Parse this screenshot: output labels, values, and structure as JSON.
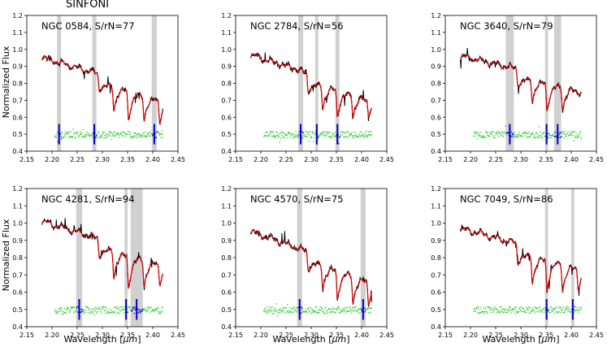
{
  "figure_title": "SINFONI",
  "ylabel": "Normalized Flux",
  "xlabel": "Wavelength [",
  "xlabel_unit": "μm",
  "xlabel_close": "]",
  "colors": {
    "observed": "#000000",
    "model": "#dd0000",
    "residual": "#33cc33",
    "masked_residual": "#0000cc",
    "mask_band": "#c8c8c8"
  },
  "chart_data": [
    {
      "type": "line",
      "title": "NGC 0584, S/rN=77",
      "xlim": [
        2.15,
        2.45
      ],
      "ylim": [
        0.4,
        1.2
      ],
      "xticks": [
        "2.15",
        "2.20",
        "2.25",
        "2.30",
        "2.35",
        "2.40",
        "2.45"
      ],
      "yticks": [
        "0.4",
        "0.5",
        "0.6",
        "0.7",
        "0.8",
        "0.9",
        "1.0",
        "1.1",
        "1.2"
      ],
      "data_range": [
        2.18,
        2.42
      ],
      "masks": [
        [
          2.21,
          2.218
        ],
        [
          2.28,
          2.288
        ],
        [
          2.398,
          2.408
        ]
      ],
      "start_level": 0.955,
      "end_level": 0.74,
      "absorptions": [
        [
          2.294,
          0.09,
          0.004
        ],
        [
          2.323,
          0.13,
          0.004
        ],
        [
          2.352,
          0.17,
          0.004
        ],
        [
          2.383,
          0.14,
          0.004
        ],
        [
          2.414,
          0.12,
          0.004
        ]
      ],
      "noise": 0.012,
      "seed": 11
    },
    {
      "type": "line",
      "title": "NGC 2784, S/rN=56",
      "xlim": [
        2.15,
        2.45
      ],
      "ylim": [
        0.4,
        1.2
      ],
      "xticks": [
        "2.15",
        "2.20",
        "2.25",
        "2.30",
        "2.35",
        "2.40",
        "2.45"
      ],
      "yticks": [
        "0.4",
        "0.5",
        "0.6",
        "0.7",
        "0.8",
        "0.9",
        "1.0",
        "1.1",
        "1.2"
      ],
      "data_range": [
        2.18,
        2.42
      ],
      "masks": [
        [
          2.274,
          2.284
        ],
        [
          2.308,
          2.314
        ],
        [
          2.348,
          2.356
        ]
      ],
      "start_level": 0.97,
      "end_level": 0.74,
      "absorptions": [
        [
          2.294,
          0.1,
          0.004
        ],
        [
          2.323,
          0.13,
          0.004
        ],
        [
          2.352,
          0.15,
          0.004
        ],
        [
          2.383,
          0.12,
          0.004
        ],
        [
          2.414,
          0.08,
          0.004
        ]
      ],
      "noise": 0.014,
      "seed": 23
    },
    {
      "type": "line",
      "title": "NGC 3640, S/rN=79",
      "xlim": [
        2.15,
        2.45
      ],
      "ylim": [
        0.4,
        1.2
      ],
      "xticks": [
        "2.15",
        "2.20",
        "2.25",
        "2.30",
        "2.35",
        "2.40",
        "2.45"
      ],
      "yticks": [
        "0.4",
        "0.5",
        "0.6",
        "0.7",
        "0.8",
        "0.9",
        "1.0",
        "1.1",
        "1.2"
      ],
      "data_range": [
        2.18,
        2.42
      ],
      "masks": [
        [
          2.27,
          2.286
        ],
        [
          2.348,
          2.354
        ],
        [
          2.366,
          2.38
        ]
      ],
      "start_level": 0.96,
      "end_level": 0.8,
      "absorptions": [
        [
          2.294,
          0.09,
          0.004
        ],
        [
          2.323,
          0.12,
          0.004
        ],
        [
          2.352,
          0.16,
          0.004
        ],
        [
          2.383,
          0.13,
          0.004
        ]
      ],
      "noise": 0.012,
      "seed": 37
    },
    {
      "type": "line",
      "title": "NGC 4281, S/rN=94",
      "xlim": [
        2.15,
        2.45
      ],
      "ylim": [
        0.4,
        1.2
      ],
      "xticks": [
        "2.15",
        "2.20",
        "2.25",
        "2.30",
        "2.35",
        "2.40",
        "2.45"
      ],
      "yticks": [
        "0.4",
        "0.5",
        "0.6",
        "0.7",
        "0.8",
        "0.9",
        "1.0",
        "1.1",
        "1.2"
      ],
      "data_range": [
        2.18,
        2.42
      ],
      "masks": [
        [
          2.248,
          2.26
        ],
        [
          2.344,
          2.35
        ],
        [
          2.356,
          2.38
        ]
      ],
      "start_level": 1.01,
      "end_level": 0.8,
      "absorptions": [
        [
          2.294,
          0.1,
          0.004
        ],
        [
          2.323,
          0.15,
          0.004
        ],
        [
          2.352,
          0.19,
          0.004
        ],
        [
          2.383,
          0.15,
          0.004
        ],
        [
          2.414,
          0.1,
          0.004
        ]
      ],
      "noise": 0.012,
      "seed": 51
    },
    {
      "type": "line",
      "title": "NGC 4570, S/rN=75",
      "xlim": [
        2.15,
        2.45
      ],
      "ylim": [
        0.4,
        1.2
      ],
      "xticks": [
        "2.15",
        "2.20",
        "2.25",
        "2.30",
        "2.35",
        "2.40",
        "2.45"
      ],
      "yticks": [
        "0.4",
        "0.5",
        "0.6",
        "0.7",
        "0.8",
        "0.9",
        "1.0",
        "1.1",
        "1.2"
      ],
      "data_range": [
        2.18,
        2.42
      ],
      "masks": [
        [
          2.272,
          2.282
        ],
        [
          2.398,
          2.408
        ]
      ],
      "start_level": 0.955,
      "end_level": 0.7,
      "absorptions": [
        [
          2.294,
          0.1,
          0.004
        ],
        [
          2.323,
          0.13,
          0.004
        ],
        [
          2.352,
          0.16,
          0.004
        ],
        [
          2.383,
          0.15,
          0.004
        ],
        [
          2.414,
          0.12,
          0.004
        ]
      ],
      "noise": 0.012,
      "seed": 67
    },
    {
      "type": "line",
      "title": "NGC 7049, S/rN=86",
      "xlim": [
        2.15,
        2.45
      ],
      "ylim": [
        0.4,
        1.2
      ],
      "xticks": [
        "2.15",
        "2.20",
        "2.25",
        "2.30",
        "2.35",
        "2.40",
        "2.45"
      ],
      "yticks": [
        "0.4",
        "0.5",
        "0.6",
        "0.7",
        "0.8",
        "0.9",
        "1.0",
        "1.1",
        "1.2"
      ],
      "data_range": [
        2.18,
        2.42
      ],
      "masks": [
        [
          2.348,
          2.354
        ],
        [
          2.4,
          2.406
        ]
      ],
      "start_level": 0.97,
      "end_level": 0.78,
      "absorptions": [
        [
          2.294,
          0.11,
          0.004
        ],
        [
          2.323,
          0.15,
          0.004
        ],
        [
          2.352,
          0.18,
          0.004
        ],
        [
          2.383,
          0.15,
          0.004
        ],
        [
          2.414,
          0.11,
          0.004
        ]
      ],
      "noise": 0.011,
      "seed": 79
    }
  ]
}
